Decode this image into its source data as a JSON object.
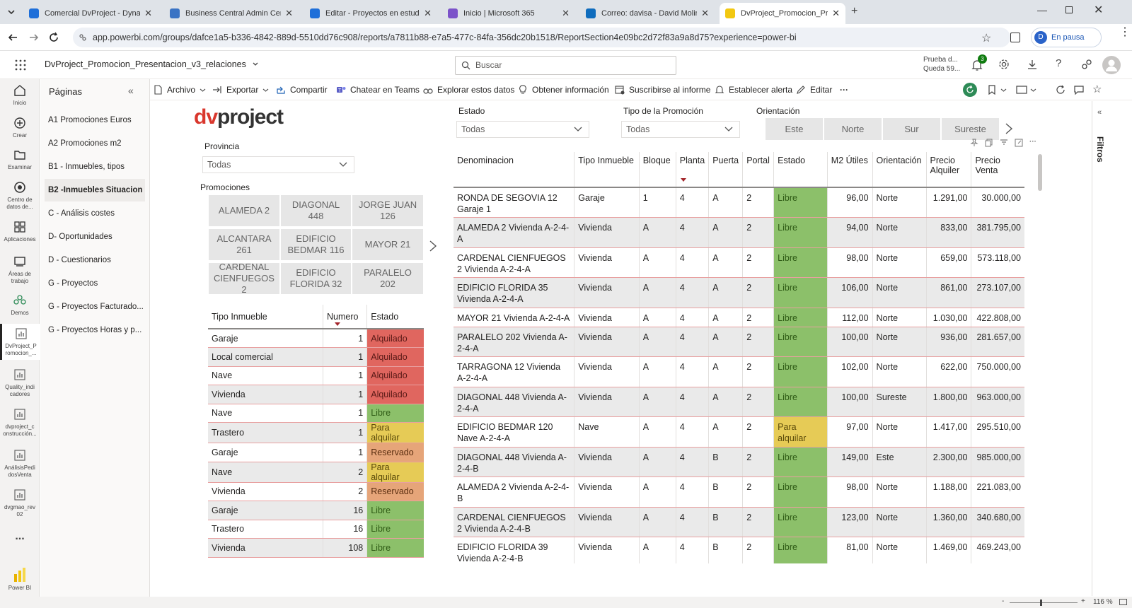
{
  "browser": {
    "tabs": [
      {
        "title": "Comercial DvProject - Dynamic",
        "color": "#1e6fd9"
      },
      {
        "title": "Business Central Admin Center",
        "color": "#3a73c4"
      },
      {
        "title": "Editar - Proyectos en estudio -",
        "color": "#1e6fd9"
      },
      {
        "title": "Inicio | Microsoft 365",
        "color": "#7b52c9"
      },
      {
        "title": "Correo: davisa - David Moliné -",
        "color": "#0f6cbd"
      },
      {
        "title": "DvProject_Promocion_Presenta",
        "color": "#f2c811"
      }
    ],
    "url": "app.powerbi.com/groups/dafce1a5-b336-4842-889d-5510dd76c908/reports/a7811b88-e7a5-477c-84fa-356dc20b1518/ReportSection4e09bc2d72f83a9a8d75?experience=power-bi",
    "profile_label": "En pausa",
    "profile_initial": "D"
  },
  "app": {
    "report_title": "DvProject_Promocion_Presentacion_v3_relaciones",
    "search_placeholder": "Buscar",
    "trial_line1": "Prueba d...",
    "trial_line2": "Queda 59...",
    "notif_count": "3"
  },
  "rail": [
    {
      "label": "Inicio",
      "icon": "home-icon"
    },
    {
      "label": "Crear",
      "icon": "create-icon"
    },
    {
      "label": "Examinar",
      "icon": "browse-icon"
    },
    {
      "label": "Centro de datos de...",
      "icon": "data-hub-icon"
    },
    {
      "label": "Aplicaciones",
      "icon": "apps-icon"
    },
    {
      "label": "Áreas de trabajo",
      "icon": "workspaces-icon"
    },
    {
      "label": "Demos",
      "icon": "demos-icon"
    },
    {
      "label": "DvProject_P romocion_...",
      "icon": "report-icon"
    },
    {
      "label": "Quality_indi cadores",
      "icon": "report-icon"
    },
    {
      "label": "dvproject_c onstrucción...",
      "icon": "report-icon"
    },
    {
      "label": "AnálisisPedi dosVenta",
      "icon": "report-icon"
    },
    {
      "label": "dvgmao_rev 02",
      "icon": "report-icon"
    }
  ],
  "rail_bottom": {
    "more": "...",
    "powerbi": "Power BI"
  },
  "pages": {
    "title": "Páginas",
    "items": [
      "A1 Promociones Euros",
      "A2 Promociones m2",
      "B1 - Inmuebles, tipos",
      "B2 -Inmuebles Situacion",
      "C - Análisis costes",
      "D- Oportunidades",
      "D - Cuestionarios",
      "G - Proyectos",
      "G - Proyectos Facturado...",
      "G - Proyectos Horas y p..."
    ],
    "selected_index": 3
  },
  "toolbar": {
    "archivo": "Archivo",
    "exportar": "Exportar",
    "compartir": "Compartir",
    "teams": "Chatear en Teams",
    "explorar": "Explorar estos datos",
    "info": "Obtener información",
    "suscribir": "Suscribirse al informe",
    "alerta": "Establecer alerta",
    "editar": "Editar",
    "more": "···"
  },
  "report": {
    "logo": "dvproject",
    "provincia_label": "Provincia",
    "provincia_value": "Todas",
    "promociones_label": "Promociones",
    "promociones": [
      "ALAMEDA 2",
      "DIAGONAL 448",
      "JORGE JUAN 126",
      "ALCANTARA 261",
      "EDIFICIO BEDMAR 116",
      "MAYOR 21",
      "CARDENAL CIENFUEGOS 2",
      "EDIFICIO FLORIDA 32",
      "PARALELO 202"
    ],
    "estado_label": "Estado",
    "estado_value": "Todas",
    "tipo_label": "Tipo de la Promoción",
    "tipo_value": "Todas",
    "orientacion_label": "Orientación",
    "orientaciones": [
      "Este",
      "Norte",
      "Sur",
      "Sureste"
    ],
    "summary": {
      "headers": [
        "Tipo Inmueble",
        "Numero",
        "Estado"
      ],
      "rows": [
        [
          "Garaje",
          "1",
          "Alquilado"
        ],
        [
          "Local comercial",
          "1",
          "Alquilado"
        ],
        [
          "Nave",
          "1",
          "Alquilado"
        ],
        [
          "Vivienda",
          "1",
          "Alquilado"
        ],
        [
          "Nave",
          "1",
          "Libre"
        ],
        [
          "Trastero",
          "1",
          "Para alquilar"
        ],
        [
          "Garaje",
          "1",
          "Reservado"
        ],
        [
          "Nave",
          "2",
          "Para alquilar"
        ],
        [
          "Vivienda",
          "2",
          "Reservado"
        ],
        [
          "Garaje",
          "16",
          "Libre"
        ],
        [
          "Trastero",
          "16",
          "Libre"
        ],
        [
          "Vivienda",
          "108",
          "Libre"
        ]
      ]
    },
    "detail": {
      "headers": [
        "Denominacion",
        "Tipo Inmueble",
        "Bloque",
        "Planta",
        "Puerta",
        "Portal",
        "Estado",
        "M2 Útiles",
        "Orientación",
        "Precio Alquiler",
        "Precio Venta"
      ],
      "rows": [
        [
          "RONDA DE SEGOVIA 12 Garaje 1",
          "Garaje",
          "1",
          "4",
          "A",
          "2",
          "Libre",
          "96,00",
          "Norte",
          "1.291,00",
          "30.000,00"
        ],
        [
          "ALAMEDA 2 Vivienda A-2-4-A",
          "Vivienda",
          "A",
          "4",
          "A",
          "2",
          "Libre",
          "94,00",
          "Norte",
          "833,00",
          "381.795,00"
        ],
        [
          "CARDENAL CIENFUEGOS 2 Vivienda A-2-4-A",
          "Vivienda",
          "A",
          "4",
          "A",
          "2",
          "Libre",
          "98,00",
          "Norte",
          "659,00",
          "573.118,00"
        ],
        [
          "EDIFICIO FLORIDA 35 Vivienda A-2-4-A",
          "Vivienda",
          "A",
          "4",
          "A",
          "2",
          "Libre",
          "106,00",
          "Norte",
          "861,00",
          "273.107,00"
        ],
        [
          "MAYOR 21 Vivienda A-2-4-A",
          "Vivienda",
          "A",
          "4",
          "A",
          "2",
          "Libre",
          "112,00",
          "Norte",
          "1.030,00",
          "422.808,00"
        ],
        [
          "PARALELO 202 Vivienda A-2-4-A",
          "Vivienda",
          "A",
          "4",
          "A",
          "2",
          "Libre",
          "100,00",
          "Norte",
          "936,00",
          "281.657,00"
        ],
        [
          "TARRAGONA 12 Vivienda A-2-4-A",
          "Vivienda",
          "A",
          "4",
          "A",
          "2",
          "Libre",
          "102,00",
          "Norte",
          "622,00",
          "750.000,00"
        ],
        [
          "DIAGONAL 448 Vivienda A-2-4-A",
          "Vivienda",
          "A",
          "4",
          "A",
          "2",
          "Libre",
          "100,00",
          "Sureste",
          "1.800,00",
          "963.000,00"
        ],
        [
          "EDIFICIO BEDMAR 120 Nave A-2-4-A",
          "Nave",
          "A",
          "4",
          "A",
          "2",
          "Para alquilar",
          "97,00",
          "Norte",
          "1.417,00",
          "295.510,00"
        ],
        [
          "DIAGONAL 448 Vivienda A-2-4-B",
          "Vivienda",
          "A",
          "4",
          "B",
          "2",
          "Libre",
          "149,00",
          "Este",
          "2.300,00",
          "985.000,00"
        ],
        [
          "ALAMEDA 2 Vivienda A-2-4-B",
          "Vivienda",
          "A",
          "4",
          "B",
          "2",
          "Libre",
          "98,00",
          "Norte",
          "1.188,00",
          "221.083,00"
        ],
        [
          "CARDENAL CIENFUEGOS 2 Vivienda A-2-4-B",
          "Vivienda",
          "A",
          "4",
          "B",
          "2",
          "Libre",
          "123,00",
          "Norte",
          "1.360,00",
          "340.680,00"
        ],
        [
          "EDIFICIO FLORIDA 39 Vivienda A-2-4-B",
          "Vivienda",
          "A",
          "4",
          "B",
          "2",
          "Libre",
          "81,00",
          "Norte",
          "1.469,00",
          "469.243,00"
        ]
      ]
    },
    "filters_label": "Filtros"
  },
  "statusbar": {
    "zoom": "116 %",
    "minus": "-",
    "plus": "+"
  },
  "colors": {
    "alquilado": "#e0665f",
    "libre": "#8cc06a",
    "para_alquilar": "#e6cb56",
    "reservado": "#e6a579",
    "logo_dv": "#d9372d"
  }
}
